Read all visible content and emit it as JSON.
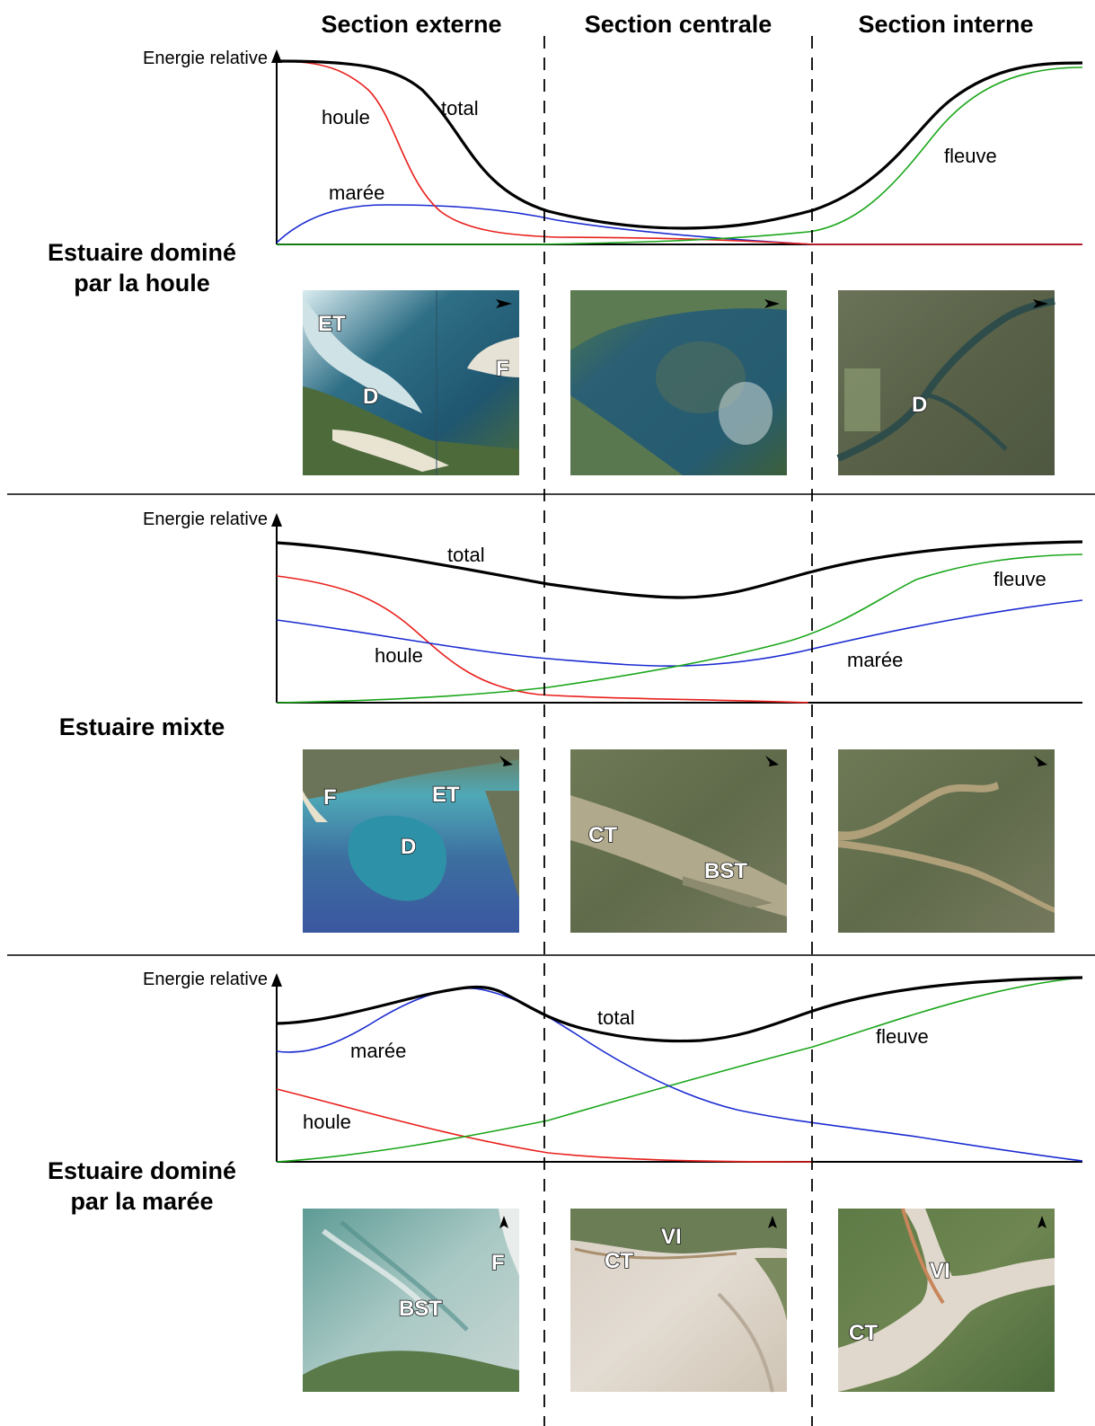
{
  "sections": [
    "Section externe",
    "Section centrale",
    "Section interne"
  ],
  "colors": {
    "total": "#000000",
    "houle": "#e8201c",
    "maree": "#1a2bd1",
    "fleuve": "#1aa61a"
  },
  "rows": [
    {
      "title_lines": [
        "Estuaire dominé",
        "par la houle"
      ],
      "axis_label": "Energie relative",
      "curve_labels": {
        "houle": "houle",
        "maree": "marée",
        "fleuve": "fleuve",
        "total": "total"
      },
      "images": [
        {
          "labels": [
            "ET",
            "D",
            "F"
          ]
        },
        {
          "labels": []
        },
        {
          "labels": [
            "D"
          ]
        }
      ]
    },
    {
      "title_lines": [
        "Estuaire mixte"
      ],
      "axis_label": "Energie relative",
      "curve_labels": {
        "houle": "houle",
        "maree": "marée",
        "fleuve": "fleuve",
        "total": "total"
      },
      "images": [
        {
          "labels": [
            "F",
            "ET",
            "D"
          ]
        },
        {
          "labels": [
            "CT",
            "BST"
          ]
        },
        {
          "labels": []
        }
      ]
    },
    {
      "title_lines": [
        "Estuaire dominé",
        "par la marée"
      ],
      "axis_label": "Energie relative",
      "curve_labels": {
        "houle": "houle",
        "maree": "marée",
        "fleuve": "fleuve",
        "total": "total"
      },
      "images": [
        {
          "labels": [
            "F",
            "BST"
          ]
        },
        {
          "labels": [
            "VI",
            "CT"
          ]
        },
        {
          "labels": [
            "VI",
            "CT"
          ]
        }
      ]
    }
  ]
}
